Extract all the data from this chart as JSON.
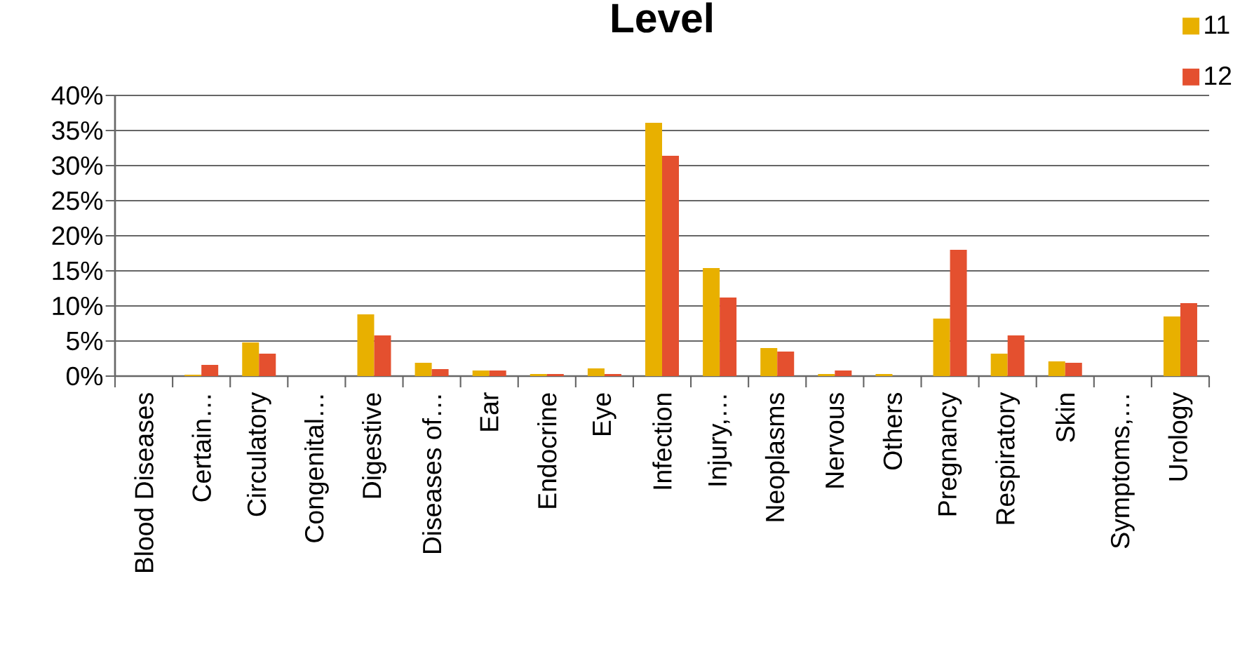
{
  "chart_data": {
    "type": "bar",
    "title": "Level",
    "categories": [
      "Blood Diseases",
      "Certain…",
      "Circulatory",
      "Congenital…",
      "Digestive",
      "Diseases of…",
      "Ear",
      "Endocrine",
      "Eye",
      "Infection",
      "Injury,…",
      "Neoplasms",
      "Nervous",
      "Others",
      "Pregnancy",
      "Respiratory",
      "Skin",
      "Symptoms,…",
      "Urology"
    ],
    "series": [
      {
        "name": "11",
        "color": "#e8b000",
        "values": [
          0,
          0.2,
          4.8,
          0,
          8.8,
          1.9,
          0.8,
          0.3,
          1.1,
          36.1,
          15.4,
          4.0,
          0.3,
          0.3,
          8.2,
          3.2,
          2.1,
          0,
          8.5
        ]
      },
      {
        "name": "12",
        "color": "#e4502f",
        "values": [
          0,
          1.6,
          3.2,
          0,
          5.8,
          1.0,
          0.8,
          0.3,
          0.3,
          31.4,
          11.2,
          3.5,
          0.8,
          0,
          18.0,
          5.8,
          1.9,
          0,
          10.4
        ]
      }
    ],
    "ylim": [
      0,
      40
    ],
    "yticks": [
      {
        "value": 0,
        "label": "0%"
      },
      {
        "value": 5,
        "label": "5%"
      },
      {
        "value": 10,
        "label": "10%"
      },
      {
        "value": 15,
        "label": "15%"
      },
      {
        "value": 20,
        "label": "20%"
      },
      {
        "value": 25,
        "label": "25%"
      },
      {
        "value": 30,
        "label": "30%"
      },
      {
        "value": 35,
        "label": "35%"
      },
      {
        "value": 40,
        "label": "40%"
      }
    ],
    "grid": "y",
    "legend": "top right"
  }
}
